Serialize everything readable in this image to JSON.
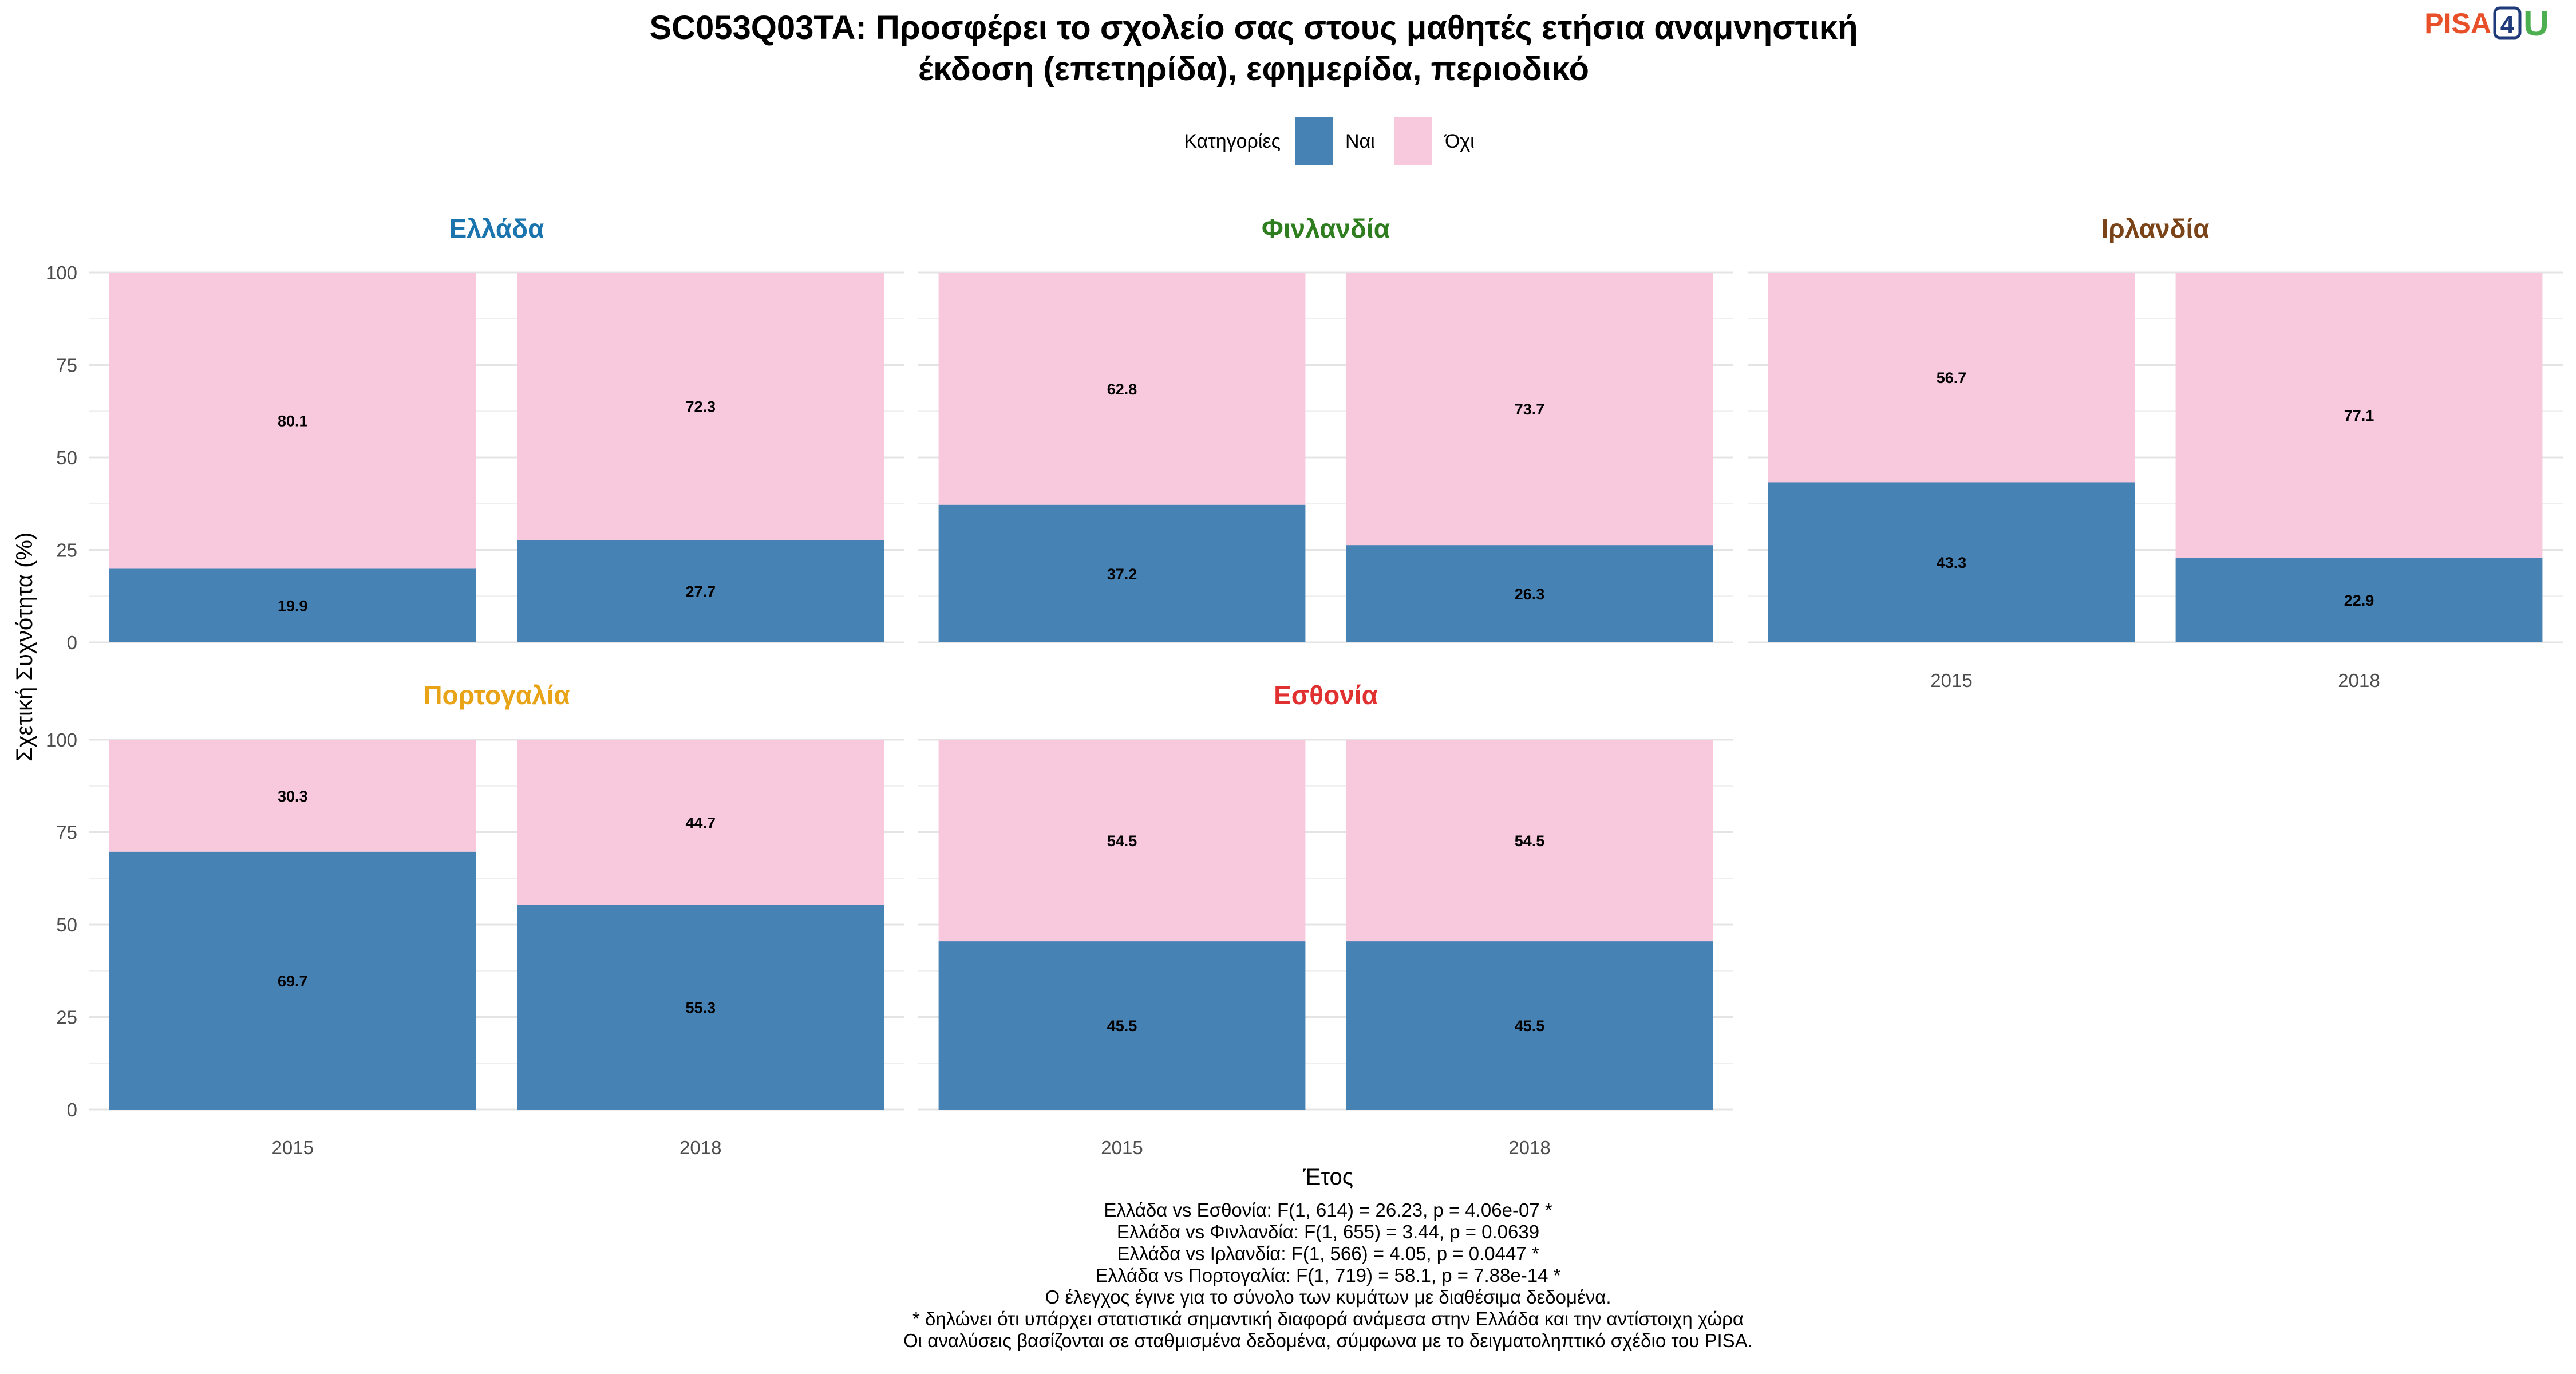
{
  "logo": {
    "text": "PISA",
    "number": "4",
    "suffix": "U"
  },
  "chart_data": {
    "type": "bar",
    "stacked": true,
    "title_lines": [
      "SC053Q03TA: Προσφέρει το σχολείο σας στους μαθητές ετήσια αναμνηστική",
      "έκδοση (επετηρίδα), εφημερίδα, περιοδικό"
    ],
    "legend": {
      "title": "Κατηγορίες",
      "position": "top",
      "items": [
        {
          "label": "Ναι",
          "color": "#4682B4"
        },
        {
          "label": "Όχι",
          "color": "#F8C8DC"
        }
      ]
    },
    "xlabel": "Έτος",
    "ylabel": "Σχετική Συχνότητα (%)",
    "ylim": [
      0,
      100
    ],
    "yticks": [
      "0",
      "25",
      "50",
      "75",
      "100"
    ],
    "categories": [
      "2015",
      "2018"
    ],
    "grid": true,
    "panels": [
      {
        "country": "Ελλάδα",
        "color": "#1A74AE",
        "yes": [
          19.9,
          27.7
        ],
        "no": [
          80.1,
          72.3
        ],
        "yes_labels": [
          "19.9",
          "27.7"
        ],
        "no_labels": [
          "80.1",
          "72.3"
        ]
      },
      {
        "country": "Φινλανδία",
        "color": "#2E7D1E",
        "yes": [
          37.2,
          26.3
        ],
        "no": [
          62.8,
          73.7
        ],
        "yes_labels": [
          "37.2",
          "26.3"
        ],
        "no_labels": [
          "62.8",
          "73.7"
        ]
      },
      {
        "country": "Ιρλανδία",
        "color": "#7A4418",
        "yes": [
          43.3,
          22.9
        ],
        "no": [
          56.7,
          77.1
        ],
        "yes_labels": [
          "43.3",
          "22.9"
        ],
        "no_labels": [
          "56.7",
          "77.1"
        ]
      },
      {
        "country": "Πορτογαλία",
        "color": "#E8A317",
        "yes": [
          69.7,
          55.3
        ],
        "no": [
          30.3,
          44.7
        ],
        "yes_labels": [
          "69.7",
          "55.3"
        ],
        "no_labels": [
          "30.3",
          "44.7"
        ]
      },
      {
        "country": "Εσθονία",
        "color": "#E03030",
        "yes": [
          45.5,
          45.5
        ],
        "no": [
          54.5,
          54.5
        ],
        "yes_labels": [
          "45.5",
          "45.5"
        ],
        "no_labels": [
          "54.5",
          "54.5"
        ]
      }
    ],
    "caption_lines": [
      "Ελλάδα vs Εσθονία: F(1, 614) = 26.23, p = 4.06e-07 *",
      "Ελλάδα vs Φινλανδία: F(1, 655) = 3.44, p = 0.0639",
      "Ελλάδα vs Ιρλανδία: F(1, 566) = 4.05, p = 0.0447 *",
      "Ελλάδα vs Πορτογαλία: F(1, 719) = 58.1, p = 7.88e-14 *",
      "Ο έλεγχος έγινε για το σύνολο των κυμάτων με διαθέσιμα δεδομένα.",
      "* δηλώνει ότι υπάρχει στατιστικά σημαντική διαφορά ανάμεσα στην Ελλάδα και την αντίστοιχη χώρα",
      "Οι αναλύσεις βασίζονται σε σταθμισμένα δεδομένα, σύμφωνα με το δειγματοληπτικό σχέδιο του PISA."
    ]
  }
}
